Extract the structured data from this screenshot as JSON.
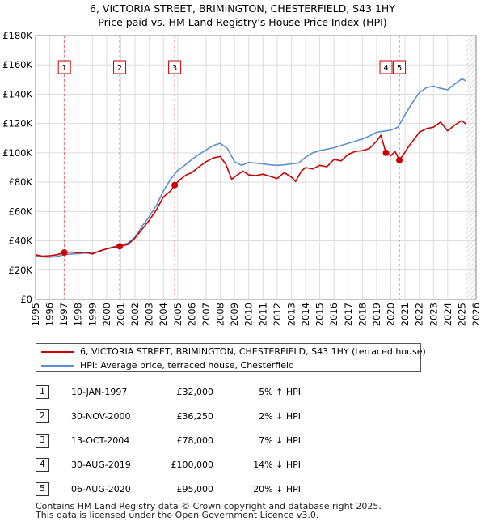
{
  "title_line1": "6, VICTORIA STREET, BRIMINGTON, CHESTERFIELD, S43 1HY",
  "title_line2": "Price paid vs. HM Land Registry's House Price Index (HPI)",
  "legend": {
    "property": "6, VICTORIA STREET, BRIMINGTON, CHESTERFIELD, S43 1HY (terraced house)",
    "hpi": "HPI: Average price, terraced house, Chesterfield"
  },
  "colors": {
    "property": "#cc0000",
    "hpi": "#5b8fd0",
    "grid": "#dddddd",
    "marker_line": "#e06666"
  },
  "sales": [
    {
      "num": "1",
      "date": "10-JAN-1997",
      "price": "£32,000",
      "hpi": "5% ↑ HPI"
    },
    {
      "num": "2",
      "date": "30-NOV-2000",
      "price": "£36,250",
      "hpi": "2% ↓ HPI"
    },
    {
      "num": "3",
      "date": "13-OCT-2004",
      "price": "£78,000",
      "hpi": "7% ↓ HPI"
    },
    {
      "num": "4",
      "date": "30-AUG-2019",
      "price": "£100,000",
      "hpi": "14% ↓ HPI"
    },
    {
      "num": "5",
      "date": "06-AUG-2020",
      "price": "£95,000",
      "hpi": "20% ↓ HPI"
    }
  ],
  "footer_line1": "Contains HM Land Registry data © Crown copyright and database right 2025.",
  "footer_line2": "This data is licensed under the Open Government Licence v3.0.",
  "chart_data": {
    "type": "line",
    "title": "6, VICTORIA STREET, BRIMINGTON, CHESTERFIELD, S43 1HY — Price paid vs. HM Land Registry's House Price Index (HPI)",
    "xlim": [
      1995,
      2026
    ],
    "ylim": [
      0,
      180000
    ],
    "x_ticks": [
      1995,
      1996,
      1997,
      1998,
      1999,
      2000,
      2001,
      2002,
      2003,
      2004,
      2005,
      2006,
      2007,
      2008,
      2009,
      2010,
      2011,
      2012,
      2013,
      2014,
      2015,
      2016,
      2017,
      2018,
      2019,
      2020,
      2021,
      2022,
      2023,
      2024,
      2025,
      2026
    ],
    "y_ticks": [
      0,
      20000,
      40000,
      60000,
      80000,
      100000,
      120000,
      140000,
      160000,
      180000
    ],
    "y_tick_labels": [
      "£0",
      "£20K",
      "£40K",
      "£60K",
      "£80K",
      "£100K",
      "£120K",
      "£140K",
      "£160K",
      "£180K"
    ],
    "sale_markers": [
      {
        "label": "1",
        "x": 1997.03,
        "y": 32000
      },
      {
        "label": "2",
        "x": 2000.92,
        "y": 36250
      },
      {
        "label": "3",
        "x": 2004.79,
        "y": 78000
      },
      {
        "label": "4",
        "x": 2019.66,
        "y": 100000
      },
      {
        "label": "5",
        "x": 2020.6,
        "y": 95000
      }
    ],
    "series": [
      {
        "name": "6, VICTORIA STREET, BRIMINGTON, CHESTERFIELD, S43 1HY (terraced house)",
        "x": [
          1995.0,
          1995.5,
          1996.0,
          1996.5,
          1997.03,
          1997.5,
          1998.0,
          1998.5,
          1999.0,
          1999.5,
          2000.0,
          2000.5,
          2000.92,
          2001.5,
          2002.0,
          2002.5,
          2003.0,
          2003.5,
          2004.0,
          2004.5,
          2004.79,
          2005.2,
          2005.6,
          2006.0,
          2006.5,
          2007.0,
          2007.5,
          2008.0,
          2008.4,
          2008.8,
          2009.2,
          2009.6,
          2010.0,
          2010.5,
          2011.0,
          2011.5,
          2012.0,
          2012.5,
          2013.0,
          2013.3,
          2013.7,
          2014.0,
          2014.5,
          2015.0,
          2015.5,
          2016.0,
          2016.5,
          2017.0,
          2017.5,
          2018.0,
          2018.5,
          2019.0,
          2019.3,
          2019.66,
          2020.0,
          2020.3,
          2020.6,
          2020.9,
          2021.3,
          2021.7,
          2022.0,
          2022.5,
          2023.0,
          2023.5,
          2024.0,
          2024.5,
          2025.0,
          2025.3
        ],
        "y": [
          30500,
          29500,
          29800,
          30500,
          32000,
          32300,
          31800,
          32200,
          31000,
          33000,
          34500,
          35500,
          36250,
          37500,
          42000,
          48000,
          54000,
          61000,
          70000,
          74000,
          78000,
          82000,
          85000,
          86500,
          90500,
          94000,
          96500,
          97500,
          92000,
          82000,
          85000,
          87500,
          85000,
          84500,
          85500,
          84000,
          82500,
          86500,
          83500,
          80500,
          87500,
          90000,
          89000,
          91500,
          90500,
          95500,
          94500,
          99000,
          101000,
          101500,
          103000,
          108000,
          112000,
          100000,
          98000,
          101000,
          95000,
          99000,
          105000,
          110000,
          114000,
          116500,
          117500,
          121000,
          115000,
          119000,
          122000,
          119500
        ]
      },
      {
        "name": "HPI: Average price, terraced house, Chesterfield",
        "x": [
          1995.0,
          1995.5,
          1996.0,
          1996.5,
          1997.0,
          1997.5,
          1998.0,
          1998.5,
          1999.0,
          1999.5,
          2000.0,
          2000.5,
          2001.0,
          2001.5,
          2002.0,
          2002.5,
          2003.0,
          2003.5,
          2004.0,
          2004.5,
          2005.0,
          2005.5,
          2006.0,
          2006.5,
          2007.0,
          2007.5,
          2008.0,
          2008.5,
          2009.0,
          2009.5,
          2010.0,
          2010.5,
          2011.0,
          2011.5,
          2012.0,
          2012.5,
          2013.0,
          2013.5,
          2014.0,
          2014.5,
          2015.0,
          2015.5,
          2016.0,
          2016.5,
          2017.0,
          2017.5,
          2018.0,
          2018.5,
          2019.0,
          2019.5,
          2020.0,
          2020.5,
          2021.0,
          2021.5,
          2022.0,
          2022.5,
          2023.0,
          2023.5,
          2024.0,
          2024.5,
          2025.0,
          2025.3
        ],
        "y": [
          29500,
          29000,
          28800,
          29300,
          30500,
          31000,
          31300,
          31600,
          31800,
          32800,
          34500,
          36000,
          36500,
          38500,
          42500,
          50000,
          56500,
          64000,
          74000,
          82000,
          88000,
          91500,
          95500,
          99000,
          102000,
          105000,
          106500,
          103000,
          94000,
          91500,
          93500,
          93000,
          92500,
          91800,
          91500,
          91800,
          92500,
          93000,
          97000,
          100000,
          101500,
          102500,
          103500,
          105000,
          106500,
          108000,
          109500,
          111500,
          114000,
          114800,
          115500,
          117500,
          126000,
          134000,
          141000,
          144500,
          145500,
          144000,
          143000,
          147000,
          150500,
          149000
        ]
      }
    ]
  }
}
